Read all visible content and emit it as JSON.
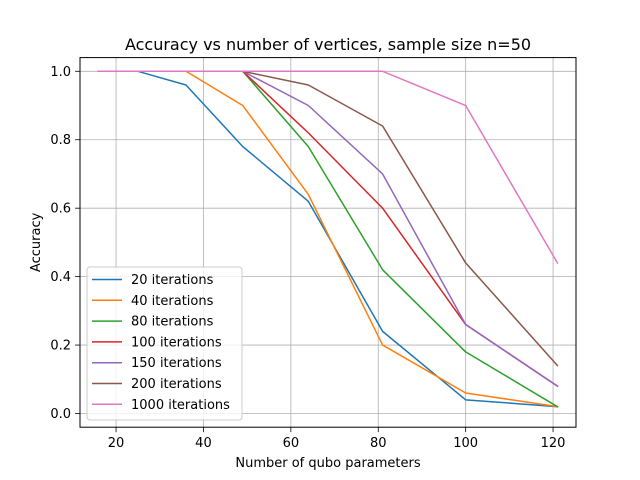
{
  "chart_data": {
    "type": "line",
    "title": "Accuracy vs number of vertices, sample size n=50",
    "xlabel": "Number of qubo parameters",
    "ylabel": "Accuracy",
    "xlim": [
      11.75,
      125.25
    ],
    "ylim": [
      -0.04,
      1.04
    ],
    "xticks": [
      20,
      40,
      60,
      80,
      100,
      120
    ],
    "yticks": [
      0.0,
      0.2,
      0.4,
      0.6,
      0.8,
      1.0
    ],
    "xtick_labels": [
      "20",
      "40",
      "60",
      "80",
      "100",
      "120"
    ],
    "ytick_labels": [
      "0.0",
      "0.2",
      "0.4",
      "0.6",
      "0.8",
      "1.0"
    ],
    "grid": true,
    "legend_position": "lower-left",
    "x": [
      16,
      25,
      36,
      49,
      64,
      81,
      100,
      121
    ],
    "series": [
      {
        "name": "20 iterations",
        "color": "#1f77b4",
        "values": [
          1.0,
          1.0,
          0.96,
          0.78,
          0.62,
          0.24,
          0.04,
          0.02
        ]
      },
      {
        "name": "40 iterations",
        "color": "#ff7f0e",
        "values": [
          1.0,
          1.0,
          1.0,
          0.9,
          0.64,
          0.2,
          0.06,
          0.02
        ]
      },
      {
        "name": "80 iterations",
        "color": "#2ca02c",
        "values": [
          1.0,
          1.0,
          1.0,
          1.0,
          0.78,
          0.42,
          0.18,
          0.02
        ]
      },
      {
        "name": "100 iterations",
        "color": "#d62728",
        "values": [
          1.0,
          1.0,
          1.0,
          1.0,
          0.82,
          0.6,
          0.26,
          0.08
        ]
      },
      {
        "name": "150 iterations",
        "color": "#9467bd",
        "values": [
          1.0,
          1.0,
          1.0,
          1.0,
          0.9,
          0.7,
          0.26,
          0.08
        ]
      },
      {
        "name": "200 iterations",
        "color": "#8c564b",
        "values": [
          1.0,
          1.0,
          1.0,
          1.0,
          0.96,
          0.84,
          0.44,
          0.14
        ]
      },
      {
        "name": "1000 iterations",
        "color": "#e377c2",
        "values": [
          1.0,
          1.0,
          1.0,
          1.0,
          1.0,
          1.0,
          0.9,
          0.44
        ]
      }
    ]
  }
}
